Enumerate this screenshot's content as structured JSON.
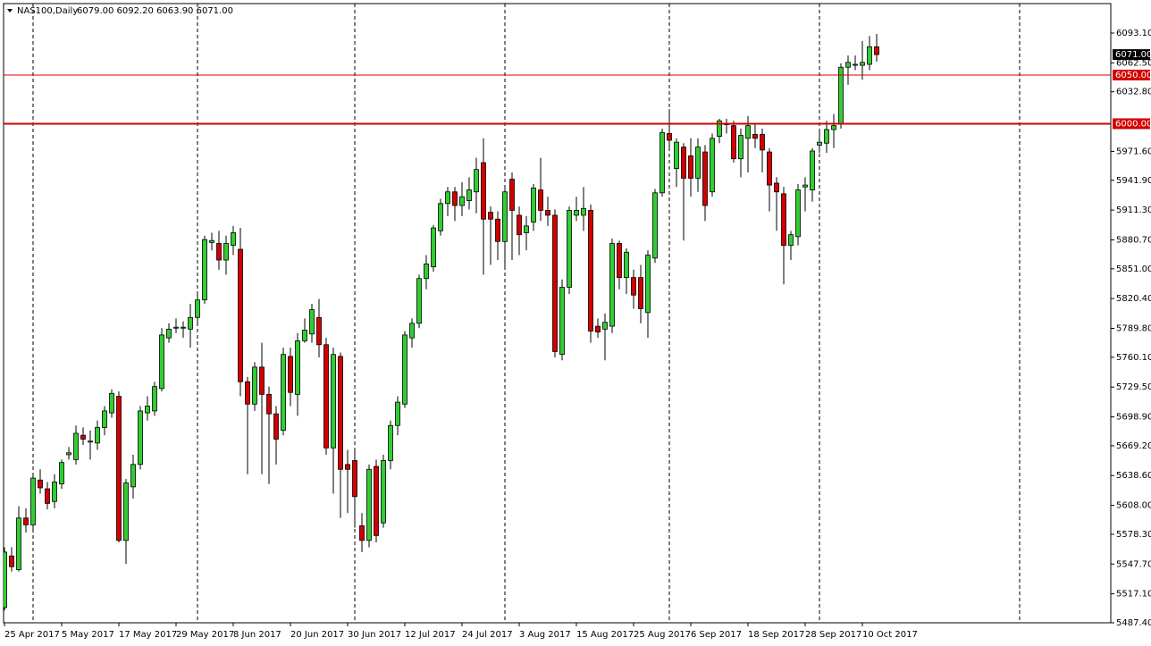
{
  "chart_data": {
    "type": "candlestick",
    "title": "NAS100,Daily",
    "subtitle": "6079.00 6092.20 6063.90 6071.00",
    "categories": [
      "25 Apr 2017",
      null,
      null,
      null,
      null,
      null,
      null,
      null,
      "5 May 2017",
      null,
      null,
      null,
      null,
      null,
      null,
      null,
      "17 May 2017",
      null,
      null,
      null,
      null,
      null,
      null,
      null,
      "29 May 2017",
      null,
      null,
      null,
      null,
      null,
      null,
      null,
      "8 Jun 2017",
      null,
      null,
      null,
      null,
      null,
      null,
      null,
      "20 Jun 2017",
      null,
      null,
      null,
      null,
      null,
      null,
      null,
      "30 Jun 2017",
      null,
      null,
      null,
      null,
      null,
      null,
      null,
      "12 Jul 2017",
      null,
      null,
      null,
      null,
      null,
      null,
      null,
      "24 Jul 2017",
      null,
      null,
      null,
      null,
      null,
      null,
      null,
      "3 Aug 2017",
      null,
      null,
      null,
      null,
      null,
      null,
      null,
      "15 Aug 2017",
      null,
      null,
      null,
      null,
      null,
      null,
      null,
      "25 Aug 2017",
      null,
      null,
      null,
      null,
      null,
      null,
      null,
      "6 Sep 2017",
      null,
      null,
      null,
      null,
      null,
      null,
      null,
      "18 Sep 2017",
      null,
      null,
      null,
      null,
      null,
      null,
      null,
      "28 Sep 2017",
      null,
      null,
      null,
      null,
      null,
      null,
      null,
      "10 Oct 2017",
      null,
      null
    ],
    "series": [
      {
        "up_color": "#32cd32",
        "down_color": "#d40000",
        "open": [
          5503,
          5556,
          5542,
          5595,
          5588,
          5634,
          5625,
          5612,
          5630,
          5660,
          5655,
          5680,
          5673,
          5672,
          5688,
          5703,
          5720,
          5572,
          5627,
          5650,
          5703,
          5705,
          5728,
          5780,
          5790,
          5790,
          5789,
          5801,
          5819,
          5878,
          5877,
          5860,
          5875,
          5871,
          5735,
          5712,
          5750,
          5722,
          5702,
          5685,
          5761,
          5722,
          5777,
          5784,
          5801,
          5773,
          5667,
          5761,
          5650,
          5654,
          5587,
          5572,
          5648,
          5590,
          5654,
          5690,
          5712,
          5780,
          5795,
          5841,
          5853,
          5890,
          5918,
          5930,
          5916,
          5921,
          5930,
          5960,
          5909,
          5902,
          5879,
          5943,
          5906,
          5888,
          5899,
          5932,
          5911,
          5906,
          5763,
          5832,
          5906,
          5906,
          5911,
          5792,
          5789,
          5792,
          5877,
          5842,
          5842,
          5842,
          5806,
          5862,
          5929,
          5990,
          5954,
          5976,
          5967,
          5944,
          5971,
          5930,
          5987,
          6000,
          5998,
          5964,
          5985,
          5989,
          5989,
          5971,
          5939,
          5928,
          5875,
          5884,
          5935,
          5932,
          5978,
          5980,
          5994,
          6000,
          6058,
          6060,
          6060,
          6061,
          6079
        ],
        "high": [
          5565,
          5565,
          5607,
          5605,
          5640,
          5645,
          5632,
          5640,
          5655,
          5668,
          5690,
          5688,
          5685,
          5695,
          5710,
          5727,
          5725,
          5635,
          5660,
          5710,
          5720,
          5735,
          5790,
          5795,
          5800,
          5797,
          5815,
          5825,
          5885,
          5888,
          5890,
          5885,
          5895,
          5893,
          5740,
          5755,
          5775,
          5730,
          5710,
          5770,
          5770,
          5785,
          5800,
          5815,
          5820,
          5780,
          5770,
          5765,
          5665,
          5665,
          5600,
          5650,
          5655,
          5660,
          5695,
          5720,
          5787,
          5800,
          5845,
          5865,
          5896,
          5923,
          5935,
          5935,
          5940,
          5945,
          5965,
          5985,
          5915,
          5910,
          5935,
          5950,
          5915,
          5905,
          5938,
          5965,
          5925,
          5912,
          5840,
          5915,
          5925,
          5935,
          5917,
          5800,
          5805,
          5882,
          5880,
          5872,
          5850,
          5855,
          5870,
          5933,
          5995,
          6015,
          5985,
          5980,
          5985,
          5985,
          5978,
          5990,
          6005,
          6005,
          6003,
          5995,
          6008,
          6000,
          5995,
          5975,
          5945,
          5935,
          5890,
          5938,
          5945,
          5975,
          5995,
          6003,
          6010,
          6062,
          6070,
          6070,
          6085,
          6090,
          6092.2
        ],
        "low": [
          5500,
          5540,
          5540,
          5580,
          5580,
          5620,
          5604,
          5605,
          5625,
          5655,
          5650,
          5670,
          5655,
          5665,
          5680,
          5698,
          5570,
          5548,
          5615,
          5645,
          5695,
          5700,
          5725,
          5775,
          5785,
          5780,
          5770,
          5795,
          5815,
          5870,
          5850,
          5845,
          5865,
          5720,
          5640,
          5705,
          5640,
          5630,
          5650,
          5680,
          5710,
          5700,
          5775,
          5775,
          5760,
          5660,
          5620,
          5595,
          5600,
          5585,
          5560,
          5565,
          5570,
          5585,
          5645,
          5680,
          5708,
          5770,
          5790,
          5830,
          5848,
          5885,
          5905,
          5900,
          5905,
          5912,
          5908,
          5845,
          5855,
          5860,
          5850,
          5860,
          5865,
          5870,
          5890,
          5900,
          5895,
          5760,
          5757,
          5825,
          5900,
          5890,
          5775,
          5780,
          5757,
          5785,
          5830,
          5825,
          5810,
          5795,
          5780,
          5857,
          5925,
          5975,
          5935,
          5880,
          5925,
          5930,
          5900,
          5925,
          5980,
          5990,
          5960,
          5945,
          5950,
          5975,
          5950,
          5910,
          5890,
          5835,
          5860,
          5875,
          5910,
          5920,
          5970,
          5970,
          5975,
          5995,
          6040,
          6055,
          6045,
          6055,
          6063.9
        ],
        "close": [
          5560,
          5545,
          5595,
          5588,
          5636,
          5626,
          5610,
          5632,
          5652,
          5662,
          5682,
          5676,
          5674,
          5688,
          5705,
          5723,
          5572,
          5631,
          5650,
          5705,
          5710,
          5730,
          5783,
          5789,
          5791,
          5791,
          5801,
          5819,
          5881,
          5880,
          5860,
          5877,
          5888,
          5735,
          5712,
          5750,
          5722,
          5702,
          5676,
          5763,
          5724,
          5777,
          5788,
          5809,
          5773,
          5667,
          5763,
          5645,
          5645,
          5617,
          5572,
          5645,
          5577,
          5654,
          5690,
          5714,
          5783,
          5795,
          5841,
          5856,
          5893,
          5918,
          5930,
          5916,
          5925,
          5932,
          5953,
          5902,
          5902,
          5879,
          5930,
          5911,
          5886,
          5895,
          5934,
          5911,
          5906,
          5766,
          5832,
          5911,
          5911,
          5913,
          5787,
          5786,
          5796,
          5877,
          5842,
          5868,
          5824,
          5810,
          5865,
          5929,
          5991,
          5983,
          5981,
          5944,
          5944,
          5976,
          5916,
          5985,
          6003,
          5999,
          5964,
          5988,
          5998,
          5985,
          5973,
          5937,
          5930,
          5875,
          5886,
          5932,
          5937,
          5972,
          5981,
          5994,
          5998,
          6058,
          6063,
          6061,
          6063,
          6079,
          6071
        ]
      }
    ],
    "hlines": [
      {
        "value": 6050,
        "label": "6050.00",
        "color": "#d40000",
        "linewidth": 1
      },
      {
        "value": 6000,
        "label": "6000.00",
        "color": "#d40000",
        "linewidth": 2
      }
    ],
    "last_price": {
      "value": 6071,
      "label": "6071.00",
      "color": "#000000"
    },
    "ylim": [
      5487.4,
      6123.4
    ],
    "yticks": [
      {
        "value": 6093.1,
        "label": "6093.10"
      },
      {
        "value": 6062.5,
        "label": "6062.50"
      },
      {
        "value": 6032.8,
        "label": "6032.80"
      },
      {
        "value": 5971.6,
        "label": "5971.60"
      },
      {
        "value": 5941.9,
        "label": "5941.90"
      },
      {
        "value": 5911.3,
        "label": "5911.30"
      },
      {
        "value": 5880.7,
        "label": "5880.70"
      },
      {
        "value": 5851.0,
        "label": "5851.00"
      },
      {
        "value": 5820.4,
        "label": "5820.40"
      },
      {
        "value": 5789.8,
        "label": "5789.80"
      },
      {
        "value": 5760.1,
        "label": "5760.10"
      },
      {
        "value": 5729.5,
        "label": "5729.50"
      },
      {
        "value": 5698.9,
        "label": "5698.90"
      },
      {
        "value": 5669.2,
        "label": "5669.20"
      },
      {
        "value": 5638.6,
        "label": "5638.60"
      },
      {
        "value": 5608.0,
        "label": "5608.00"
      },
      {
        "value": 5578.3,
        "label": "5578.30"
      },
      {
        "value": 5547.7,
        "label": "5547.70"
      },
      {
        "value": 5517.1,
        "label": "5517.10"
      },
      {
        "value": 5487.4,
        "label": "5487.40"
      }
    ]
  }
}
